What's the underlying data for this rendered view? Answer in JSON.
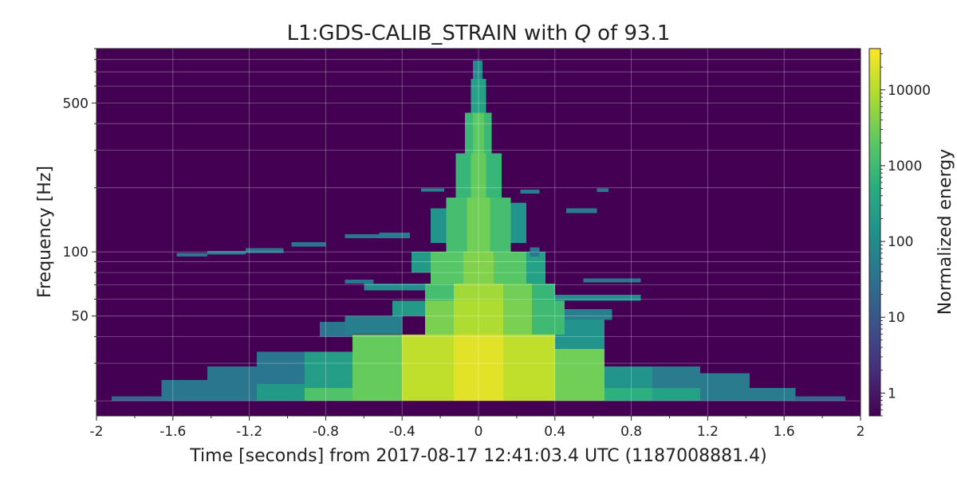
{
  "chart_data": {
    "type": "heatmap",
    "title": {
      "prefix": "L1:GDS-CALIB_STRAIN with ",
      "italic": "Q",
      "suffix": " of 93.1"
    },
    "xlabel": "Time [seconds] from 2017-08-17 12:41:03.4 UTC (1187008881.4)",
    "ylabel": "Frequency [Hz]",
    "xlim": [
      -2,
      2
    ],
    "ylim": [
      17,
      900
    ],
    "yscale": "log",
    "grid": true,
    "x_ticks": [
      {
        "value": -2,
        "label": "-2"
      },
      {
        "value": -1.6,
        "label": "-1.6"
      },
      {
        "value": -1.2,
        "label": "-1.2"
      },
      {
        "value": -0.8,
        "label": "-0.8"
      },
      {
        "value": -0.4,
        "label": "-0.4"
      },
      {
        "value": 0,
        "label": "0"
      },
      {
        "value": 0.4,
        "label": "0.4"
      },
      {
        "value": 0.8,
        "label": "0.8"
      },
      {
        "value": 1.2,
        "label": "1.2"
      },
      {
        "value": 1.6,
        "label": "1.6"
      },
      {
        "value": 2,
        "label": "2"
      }
    ],
    "y_ticks": [
      {
        "value": 50,
        "label": "50"
      },
      {
        "value": 100,
        "label": "100"
      },
      {
        "value": 500,
        "label": "500"
      }
    ],
    "colorbar": {
      "label": "Normalized energy",
      "scale": "log",
      "range": [
        0.5,
        35000
      ],
      "colormap": "viridis",
      "ticks": [
        {
          "value": 1,
          "label": "1"
        },
        {
          "value": 10,
          "label": "10"
        },
        {
          "value": 100,
          "label": "100"
        },
        {
          "value": 1000,
          "label": "1000"
        },
        {
          "value": 10000,
          "label": "10000"
        }
      ]
    },
    "background_color": "#440154",
    "tiles": [
      {
        "t0": -1.92,
        "t1": -1.66,
        "f0": 20,
        "f1": 21,
        "v": 20
      },
      {
        "t0": -1.66,
        "t1": -1.42,
        "f0": 20,
        "f1": 25,
        "v": 40
      },
      {
        "t0": -1.42,
        "t1": -1.16,
        "f0": 20,
        "f1": 29,
        "v": 40
      },
      {
        "t0": -1.16,
        "t1": -0.91,
        "f0": 20,
        "f1": 24,
        "v": 200
      },
      {
        "t0": -1.16,
        "t1": -0.91,
        "f0": 24,
        "f1": 34,
        "v": 40
      },
      {
        "t0": -0.91,
        "t1": -0.66,
        "f0": 20,
        "f1": 23,
        "v": 1500
      },
      {
        "t0": -0.91,
        "t1": -0.66,
        "f0": 23,
        "f1": 34,
        "v": 250
      },
      {
        "t0": -0.83,
        "t1": -0.66,
        "f0": 40,
        "f1": 47,
        "v": 40
      },
      {
        "t0": -0.66,
        "t1": -0.4,
        "f0": 20,
        "f1": 41,
        "v": 2500
      },
      {
        "t0": -0.7,
        "t1": -0.4,
        "f0": 41,
        "f1": 50,
        "v": 60
      },
      {
        "t0": -0.4,
        "t1": -0.13,
        "f0": 20,
        "f1": 41,
        "v": 12000
      },
      {
        "t0": -0.13,
        "t1": 0.13,
        "f0": 20,
        "f1": 41,
        "v": 22000
      },
      {
        "t0": 0.13,
        "t1": 0.4,
        "f0": 20,
        "f1": 41,
        "v": 12000
      },
      {
        "t0": 0.4,
        "t1": 0.66,
        "f0": 20,
        "f1": 35,
        "v": 3000
      },
      {
        "t0": 0.4,
        "t1": 0.66,
        "f0": 35,
        "f1": 50,
        "v": 150
      },
      {
        "t0": 0.66,
        "t1": 0.91,
        "f0": 20,
        "f1": 23,
        "v": 600
      },
      {
        "t0": 0.66,
        "t1": 0.91,
        "f0": 23,
        "f1": 29,
        "v": 150
      },
      {
        "t0": 0.91,
        "t1": 1.16,
        "f0": 20,
        "f1": 23,
        "v": 300
      },
      {
        "t0": 0.91,
        "t1": 1.16,
        "f0": 23,
        "f1": 29,
        "v": 50
      },
      {
        "t0": 1.16,
        "t1": 1.42,
        "f0": 20,
        "f1": 27,
        "v": 50
      },
      {
        "t0": 1.42,
        "t1": 1.66,
        "f0": 20,
        "f1": 23,
        "v": 50
      },
      {
        "t0": 1.66,
        "t1": 1.92,
        "f0": 20,
        "f1": 21,
        "v": 20
      },
      {
        "t0": -0.45,
        "t1": -0.28,
        "f0": 50,
        "f1": 59,
        "v": 200
      },
      {
        "t0": -0.28,
        "t1": -0.13,
        "f0": 41,
        "f1": 59,
        "v": 3500
      },
      {
        "t0": -0.13,
        "t1": 0.13,
        "f0": 41,
        "f1": 59,
        "v": 9000
      },
      {
        "t0": 0.13,
        "t1": 0.28,
        "f0": 41,
        "f1": 59,
        "v": 3500
      },
      {
        "t0": 0.28,
        "t1": 0.45,
        "f0": 41,
        "f1": 59,
        "v": 1000
      },
      {
        "t0": 0.45,
        "t1": 0.7,
        "f0": 48,
        "f1": 54,
        "v": 60
      },
      {
        "t0": -0.28,
        "t1": -0.13,
        "f0": 59,
        "f1": 71,
        "v": 1200
      },
      {
        "t0": -0.13,
        "t1": 0.13,
        "f0": 59,
        "f1": 71,
        "v": 7000
      },
      {
        "t0": 0.13,
        "t1": 0.28,
        "f0": 59,
        "f1": 71,
        "v": 3000
      },
      {
        "t0": 0.28,
        "t1": 0.4,
        "f0": 59,
        "f1": 71,
        "v": 800
      },
      {
        "t0": 0.4,
        "t1": 0.85,
        "f0": 59,
        "f1": 63,
        "v": 100
      },
      {
        "t0": -0.6,
        "t1": -0.28,
        "f0": 66,
        "f1": 71,
        "v": 100
      },
      {
        "t0": -0.25,
        "t1": -0.08,
        "f0": 71,
        "f1": 100,
        "v": 1800
      },
      {
        "t0": -0.08,
        "t1": 0.08,
        "f0": 71,
        "f1": 100,
        "v": 4000
      },
      {
        "t0": 0.08,
        "t1": 0.25,
        "f0": 71,
        "f1": 100,
        "v": 1800
      },
      {
        "t0": 0.25,
        "t1": 0.35,
        "f0": 71,
        "f1": 100,
        "v": 300
      },
      {
        "t0": -0.35,
        "t1": -0.25,
        "f0": 80,
        "f1": 100,
        "v": 200
      },
      {
        "t0": -0.17,
        "t1": -0.06,
        "f0": 100,
        "f1": 180,
        "v": 1200
      },
      {
        "t0": -0.06,
        "t1": 0.06,
        "f0": 100,
        "f1": 180,
        "v": 3000
      },
      {
        "t0": 0.06,
        "t1": 0.17,
        "f0": 100,
        "f1": 180,
        "v": 1200
      },
      {
        "t0": -0.25,
        "t1": -0.17,
        "f0": 110,
        "f1": 160,
        "v": 150
      },
      {
        "t0": 0.17,
        "t1": 0.25,
        "f0": 110,
        "f1": 170,
        "v": 150
      },
      {
        "t0": -0.12,
        "t1": -0.04,
        "f0": 180,
        "f1": 290,
        "v": 800
      },
      {
        "t0": -0.04,
        "t1": 0.04,
        "f0": 180,
        "f1": 290,
        "v": 2500
      },
      {
        "t0": 0.04,
        "t1": 0.12,
        "f0": 180,
        "f1": 290,
        "v": 800
      },
      {
        "t0": -0.07,
        "t1": 0.07,
        "f0": 290,
        "f1": 450,
        "v": 900
      },
      {
        "t0": -0.03,
        "t1": 0.03,
        "f0": 290,
        "f1": 450,
        "v": 2000
      },
      {
        "t0": -0.04,
        "t1": 0.04,
        "f0": 450,
        "f1": 650,
        "v": 300
      },
      {
        "t0": -0.03,
        "t1": 0.02,
        "f0": 650,
        "f1": 790,
        "v": 100
      },
      {
        "t0": -1.58,
        "t1": -1.42,
        "f0": 95,
        "f1": 99,
        "v": 40
      },
      {
        "t0": -1.42,
        "t1": -1.22,
        "f0": 97,
        "f1": 101,
        "v": 40
      },
      {
        "t0": -1.22,
        "t1": -1.02,
        "f0": 99,
        "f1": 104,
        "v": 40
      },
      {
        "t0": -0.98,
        "t1": -0.8,
        "f0": 106,
        "f1": 111,
        "v": 40
      },
      {
        "t0": -0.7,
        "t1": -0.52,
        "f0": 116,
        "f1": 121,
        "v": 40
      },
      {
        "t0": -0.52,
        "t1": -0.36,
        "f0": 116,
        "f1": 123,
        "v": 50
      },
      {
        "t0": -0.3,
        "t1": -0.18,
        "f0": 192,
        "f1": 199,
        "v": 60
      },
      {
        "t0": 0.22,
        "t1": 0.32,
        "f0": 188,
        "f1": 196,
        "v": 50
      },
      {
        "t0": 0.46,
        "t1": 0.62,
        "f0": 152,
        "f1": 160,
        "v": 50
      },
      {
        "t0": 0.62,
        "t1": 0.68,
        "f0": 191,
        "f1": 199,
        "v": 40
      },
      {
        "t0": 0.27,
        "t1": 0.32,
        "f0": 95,
        "f1": 105,
        "v": 40
      },
      {
        "t0": 0.55,
        "t1": 0.85,
        "f0": 72,
        "f1": 75,
        "v": 40
      },
      {
        "t0": -0.7,
        "t1": -0.55,
        "f0": 71,
        "f1": 74,
        "v": 40
      }
    ]
  }
}
